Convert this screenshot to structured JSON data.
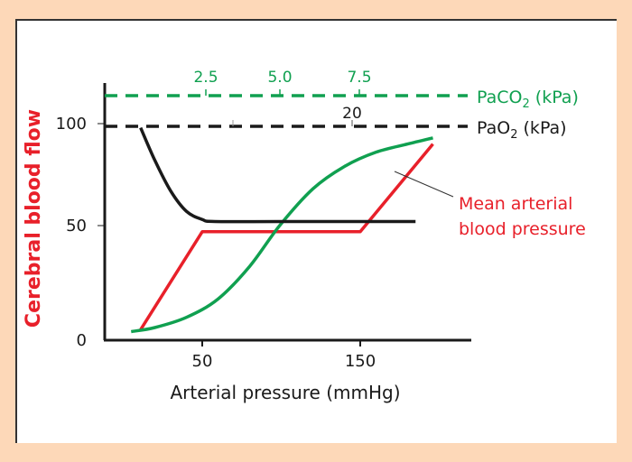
{
  "chart_data": {
    "type": "line",
    "xlabel": "Arterial pressure (mmHg)",
    "ylabel": "Cerebral blood flow",
    "x_ticks": [
      "50",
      "150"
    ],
    "x_tick_values": [
      50,
      150
    ],
    "y_ticks": [
      "0",
      "50",
      "100"
    ],
    "y_tick_values": [
      0,
      50,
      100
    ],
    "grid": false,
    "paco2_axis": {
      "label": "PaCO",
      "sub": "2",
      "unit": " (kPa)",
      "ticks": [
        "2.5",
        "5.0",
        "7.5"
      ],
      "color": "#10a050"
    },
    "pao2_axis": {
      "label": "PaO",
      "sub": "2",
      "unit": " (kPa)",
      "ticks": [
        "20"
      ],
      "color": "#1a1a1a"
    },
    "series": [
      {
        "name": "Mean arterial blood pressure",
        "label_lines": [
          "Mean arterial",
          "blood pressure"
        ],
        "color": "#e8202a",
        "x": [
          11,
          50,
          150,
          196
        ],
        "y": [
          -1,
          47,
          47,
          90
        ]
      },
      {
        "name": "PaCO2",
        "color": "#10a050",
        "x": [
          5,
          20,
          40,
          60,
          80,
          99,
          120,
          140,
          160,
          180,
          196
        ],
        "y": [
          -2,
          0,
          5,
          14,
          30,
          50,
          68,
          79,
          86,
          90,
          93
        ]
      },
      {
        "name": "PaO2",
        "color": "#1a1a1a",
        "x": [
          11,
          20,
          30,
          40,
          50,
          58,
          100,
          185
        ],
        "y": [
          98,
          82,
          67,
          57,
          53,
          52,
          52,
          52
        ]
      }
    ]
  }
}
